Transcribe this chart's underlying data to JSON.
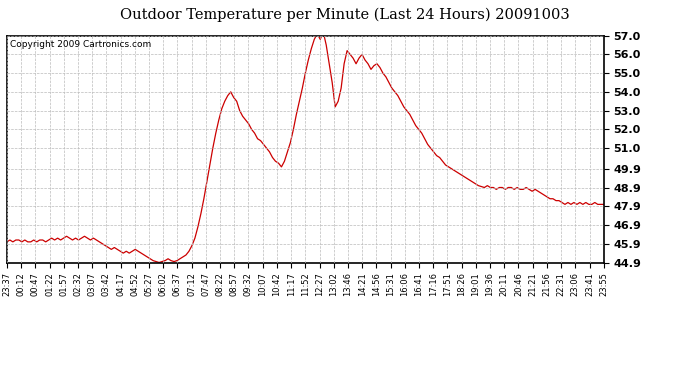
{
  "title": "Outdoor Temperature per Minute (Last 24 Hours) 20091003",
  "copyright": "Copyright 2009 Cartronics.com",
  "line_color": "#cc0000",
  "bg_color": "#ffffff",
  "grid_color": "#bbbbbb",
  "ylim": [
    44.9,
    57.0
  ],
  "yticks": [
    44.9,
    45.9,
    46.9,
    47.9,
    48.9,
    49.9,
    51.0,
    52.0,
    53.0,
    54.0,
    55.0,
    56.0,
    57.0
  ],
  "xtick_labels": [
    "23:37",
    "00:12",
    "00:47",
    "01:22",
    "01:57",
    "02:32",
    "03:07",
    "03:42",
    "04:17",
    "04:52",
    "05:27",
    "06:02",
    "06:37",
    "07:12",
    "07:47",
    "08:22",
    "08:57",
    "09:32",
    "10:07",
    "10:42",
    "11:17",
    "11:52",
    "12:27",
    "13:02",
    "13:46",
    "14:21",
    "14:56",
    "15:31",
    "16:06",
    "16:41",
    "17:16",
    "17:51",
    "18:26",
    "19:01",
    "19:36",
    "20:11",
    "20:46",
    "21:21",
    "21:56",
    "22:31",
    "23:06",
    "23:41",
    "23:55"
  ],
  "data_y": [
    46.0,
    46.1,
    46.0,
    46.1,
    46.1,
    46.0,
    46.1,
    46.0,
    46.0,
    46.1,
    46.0,
    46.1,
    46.1,
    46.0,
    46.1,
    46.2,
    46.1,
    46.2,
    46.1,
    46.2,
    46.3,
    46.2,
    46.1,
    46.2,
    46.1,
    46.2,
    46.3,
    46.2,
    46.1,
    46.2,
    46.1,
    46.0,
    45.9,
    45.8,
    45.7,
    45.6,
    45.7,
    45.6,
    45.5,
    45.4,
    45.5,
    45.4,
    45.5,
    45.6,
    45.5,
    45.4,
    45.3,
    45.2,
    45.1,
    45.0,
    44.95,
    44.9,
    44.95,
    45.0,
    45.1,
    45.0,
    44.95,
    45.0,
    45.1,
    45.2,
    45.3,
    45.5,
    45.8,
    46.2,
    46.8,
    47.5,
    48.3,
    49.2,
    50.1,
    51.0,
    51.8,
    52.5,
    53.1,
    53.5,
    53.8,
    54.0,
    53.7,
    53.5,
    53.0,
    52.7,
    52.5,
    52.3,
    52.0,
    51.8,
    51.5,
    51.4,
    51.2,
    51.0,
    50.8,
    50.5,
    50.3,
    50.2,
    50.0,
    50.3,
    50.8,
    51.3,
    52.0,
    52.8,
    53.5,
    54.2,
    55.0,
    55.7,
    56.3,
    56.8,
    57.1,
    56.8,
    57.2,
    56.5,
    55.5,
    54.5,
    53.2,
    53.5,
    54.2,
    55.5,
    56.2,
    56.0,
    55.8,
    55.5,
    55.8,
    56.0,
    55.7,
    55.5,
    55.2,
    55.4,
    55.5,
    55.3,
    55.0,
    54.8,
    54.5,
    54.2,
    54.0,
    53.8,
    53.5,
    53.2,
    53.0,
    52.8,
    52.5,
    52.2,
    52.0,
    51.8,
    51.5,
    51.2,
    51.0,
    50.8,
    50.6,
    50.5,
    50.3,
    50.1,
    50.0,
    49.9,
    49.8,
    49.7,
    49.6,
    49.5,
    49.4,
    49.3,
    49.2,
    49.1,
    49.0,
    48.95,
    48.9,
    49.0,
    48.9,
    48.9,
    48.8,
    48.9,
    48.9,
    48.8,
    48.9,
    48.9,
    48.8,
    48.9,
    48.8,
    48.8,
    48.9,
    48.8,
    48.7,
    48.8,
    48.7,
    48.6,
    48.5,
    48.4,
    48.3,
    48.3,
    48.2,
    48.2,
    48.1,
    48.0,
    48.1,
    48.0,
    48.1,
    48.0,
    48.1,
    48.0,
    48.1,
    48.0,
    48.0,
    48.1,
    48.0,
    48.0,
    48.0
  ]
}
